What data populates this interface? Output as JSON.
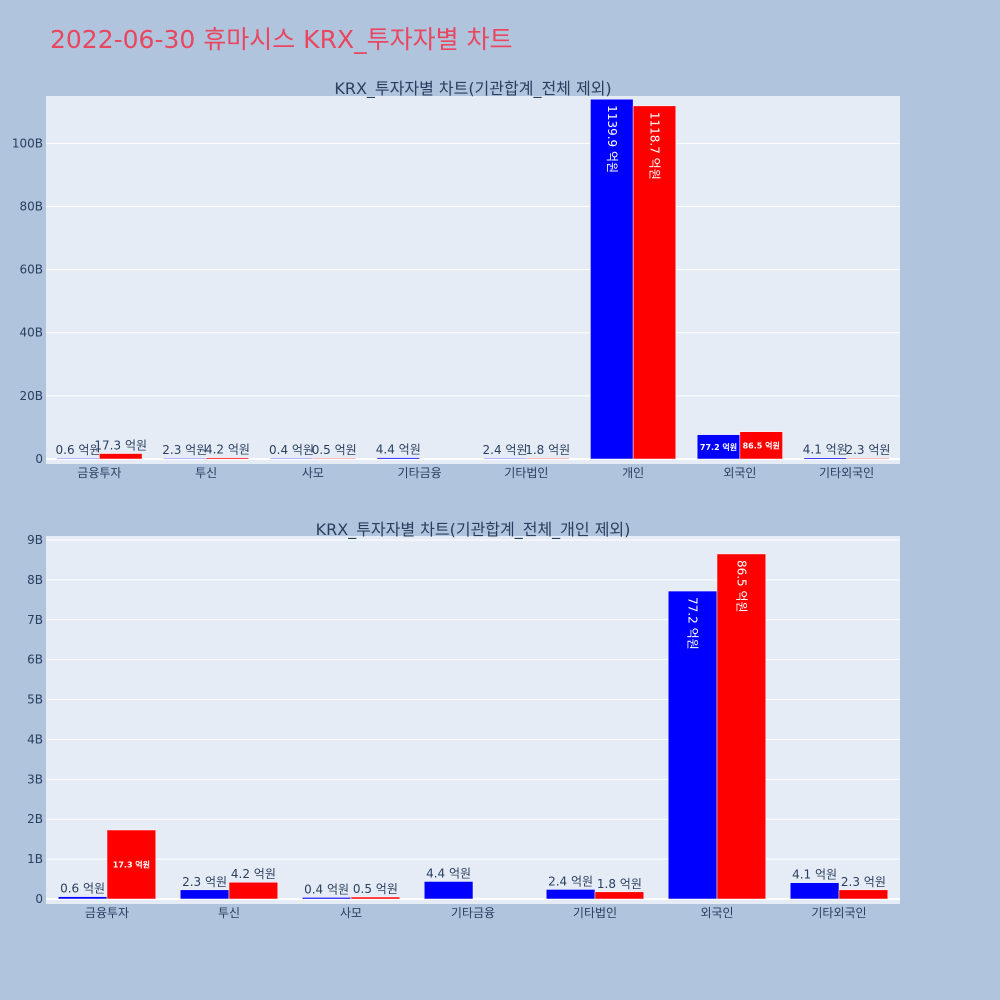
{
  "page_title": "2022-06-30 휴마시스 KRX_투자자별 차트",
  "colors": {
    "buy": "#0000ff",
    "sell": "#ff0000",
    "plot_bg": "#e5ecf6",
    "page_bg": "#b0c4de",
    "title": "#e8475f"
  },
  "chart_data": [
    {
      "type": "bar",
      "title": "KRX_투자자별 차트(기관합계_전체 제외)",
      "categories": [
        "금융투자",
        "투신",
        "사모",
        "기타금융",
        "기타법인",
        "개인",
        "외국인",
        "기타외국인"
      ],
      "series": [
        {
          "values": [
            60000000,
            230000000,
            40000000,
            440000000,
            240000000,
            113990000000,
            7720000000,
            410000000
          ],
          "labels": [
            "0.6 억원",
            "2.3 억원",
            "0.4 억원",
            "4.4 억원",
            "2.4 억원",
            "1139.9 억원",
            "77.2 억원",
            "4.1 억원"
          ]
        },
        {
          "values": [
            1730000000,
            420000000,
            50000000,
            null,
            180000000,
            111870000000,
            8650000000,
            230000000
          ],
          "labels": [
            "17.3 억원",
            "4.2 억원",
            "0.5 억원",
            "",
            "1.8 억원",
            "1118.7 억원",
            "86.5 억원",
            "2.3 억원"
          ]
        }
      ],
      "yticks": [
        "0",
        "20B",
        "40B",
        "60B",
        "80B",
        "100B"
      ],
      "ytick_values": [
        0,
        20000000000,
        40000000000,
        60000000000,
        80000000000,
        100000000000
      ],
      "ylim": [
        0,
        115000000000
      ],
      "grid": true
    },
    {
      "type": "bar",
      "title": "KRX_투자자별 차트(기관합계_전체_개인 제외)",
      "categories": [
        "금융투자",
        "투신",
        "사모",
        "기타금융",
        "기타법인",
        "외국인",
        "기타외국인"
      ],
      "series": [
        {
          "values": [
            60000000,
            230000000,
            40000000,
            440000000,
            240000000,
            7720000000,
            410000000
          ],
          "labels": [
            "0.6 억원",
            "2.3 억원",
            "0.4 억원",
            "4.4 억원",
            "2.4 억원",
            "77.2 억원",
            "4.1 억원"
          ]
        },
        {
          "values": [
            1730000000,
            420000000,
            50000000,
            null,
            180000000,
            8650000000,
            230000000
          ],
          "labels": [
            "17.3 억원",
            "4.2 억원",
            "0.5 억원",
            "",
            "1.8 억원",
            "86.5 억원",
            "2.3 억원"
          ]
        }
      ],
      "yticks": [
        "0",
        "1B",
        "2B",
        "3B",
        "4B",
        "5B",
        "6B",
        "7B",
        "8B",
        "9B"
      ],
      "ytick_values": [
        0,
        1000000000,
        2000000000,
        3000000000,
        4000000000,
        5000000000,
        6000000000,
        7000000000,
        8000000000,
        9000000000
      ],
      "ylim": [
        0,
        9100000000
      ],
      "grid": true
    }
  ]
}
